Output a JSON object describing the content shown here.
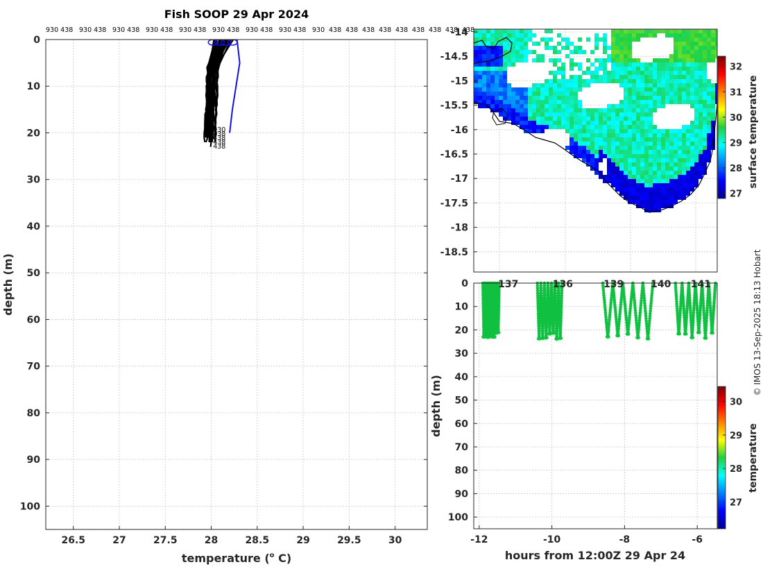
{
  "chart_data": [
    {
      "id": "profiles",
      "type": "line",
      "title": "Fish SOOP 29 Apr 2024",
      "xlabel": "temperature (",
      "xlabel_sup": "o",
      "xlabel_end": " C)",
      "ylabel": "depth (m)",
      "xlim": [
        26.2,
        30.35
      ],
      "ylim": [
        105,
        0
      ],
      "xticks": [
        "26.5",
        "27",
        "27.5",
        "28",
        "28.5",
        "29",
        "29.5",
        "30"
      ],
      "yticks": [
        "0",
        "10",
        "20",
        "30",
        "40",
        "50",
        "60",
        "70",
        "80",
        "90",
        "100"
      ],
      "grid": true,
      "top_labels": [
        "930 438",
        "930 438",
        "930 438",
        "930 438",
        "930 438",
        "930 438",
        "930 438",
        "930 438",
        "930",
        "438",
        "438",
        "438",
        "438",
        "438",
        "438",
        "438",
        "438",
        "438"
      ],
      "series": [
        {
          "name": "profiles (black)",
          "color": "#000000",
          "count": 30,
          "x_range": [
            27.93,
            28.25
          ],
          "max_depth": 23.5
        },
        {
          "name": "latest profile",
          "color": "#1010e0",
          "points": [
            [
              28.28,
              0
            ],
            [
              28.31,
              5
            ],
            [
              28.27,
              10
            ],
            [
              28.23,
              15
            ],
            [
              28.2,
              20
            ]
          ]
        }
      ],
      "bottom_labels": [
        "930",
        "438",
        "438",
        "438",
        "438"
      ]
    },
    {
      "id": "map",
      "type": "heatmap",
      "ylim": [
        -19,
        -14
      ],
      "xlim": [
        121.7,
        141.6
      ],
      "yticks": [
        "-14",
        "-14.5",
        "-15",
        "-15.5",
        "-16",
        "-16.5",
        "-17",
        "-17.5",
        "-18",
        "-18.5"
      ],
      "colorbar": {
        "label": "surface temperature",
        "ticks": [
          "32",
          "31",
          "30",
          "29",
          "28",
          "27"
        ],
        "range": [
          26.8,
          32.4
        ]
      }
    },
    {
      "id": "section",
      "type": "scatter",
      "xlabel": "hours from 12:00Z 29 Apr 24",
      "ylabel": "depth (m)",
      "xlim": [
        -12.15,
        -5.45
      ],
      "ylim": [
        105,
        0
      ],
      "xticks": [
        "-12",
        "-10",
        "-8",
        "-6"
      ],
      "yticks": [
        "0",
        "10",
        "20",
        "30",
        "40",
        "50",
        "60",
        "70",
        "80",
        "90",
        "100"
      ],
      "top_labels": [
        "137",
        "136",
        "139",
        "140",
        "141"
      ],
      "point_color": "#10c040",
      "groups": [
        {
          "start": -11.9,
          "end": -11.45,
          "casts": 8
        },
        {
          "start": -10.4,
          "end": -9.72,
          "casts": 7
        },
        {
          "start": -8.6,
          "end": -7.22,
          "casts": 5
        },
        {
          "start": -6.6,
          "end": -5.5,
          "casts": 6
        }
      ],
      "colorbar": {
        "label": "temperature",
        "ticks": [
          "30",
          "29",
          "28",
          "27"
        ],
        "range": [
          26.2,
          30.45
        ]
      }
    }
  ],
  "credit": "© IMOS 13-Sep-2025 18:13 Hobart"
}
